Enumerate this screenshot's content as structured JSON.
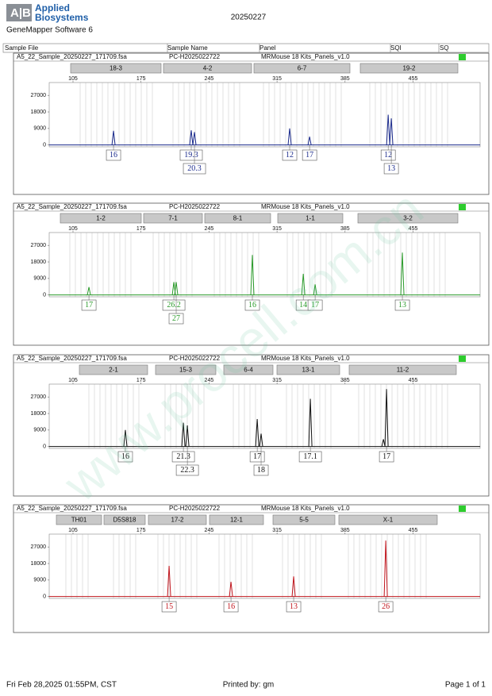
{
  "header": {
    "logo": [
      "Applied",
      "Biosystems"
    ],
    "software": "GeneMapper Software 6",
    "date": "20250227"
  },
  "columns": [
    "Sample File",
    "Sample Name",
    "Panel",
    "SQI",
    "SQ"
  ],
  "axis": {
    "xlim": [
      80.5,
      524
    ],
    "xticks": [
      105,
      175,
      245,
      315,
      385,
      455
    ],
    "ylim": [
      -1000,
      34000
    ],
    "yticks": [
      0,
      9000,
      18000,
      27000
    ]
  },
  "panels": [
    {
      "sample_file": "A5_22_Sample_20250227_171709.fsa",
      "sample_name": "PC-H2025022722",
      "panel": "MRMouse 18 Kits_Panels_v1.0",
      "color": "#1a2a8c",
      "markers": [
        "18-3",
        "4-2",
        "6-7",
        "19-2"
      ],
      "peaks": [
        {
          "x": 146.7,
          "height": 7700,
          "allele": "16"
        },
        {
          "x": 226.7,
          "height": 8000,
          "allele": "19.3"
        },
        {
          "x": 230,
          "height": 7000,
          "allele": "20.3"
        },
        {
          "x": 328,
          "height": 9000,
          "allele": "12"
        },
        {
          "x": 348.5,
          "height": 4500,
          "allele": "17"
        },
        {
          "x": 429.4,
          "height": 16500,
          "allele": "12"
        },
        {
          "x": 432.6,
          "height": 14500,
          "allele": "13"
        }
      ]
    },
    {
      "sample_file": "A5_22_Sample_20250227_171709.fsa",
      "sample_name": "PC-H2025022722",
      "panel": "MRMouse 18 Kits_Panels_v1.0",
      "color": "#2a9a2a",
      "markers": [
        "1-2",
        "7-1",
        "8-1",
        "1-1",
        "3-2"
      ],
      "peaks": [
        {
          "x": 121.4,
          "height": 4300,
          "allele": "17"
        },
        {
          "x": 208.8,
          "height": 7000,
          "allele": "26.2"
        },
        {
          "x": 211.2,
          "height": 7000,
          "allele": "27"
        },
        {
          "x": 289.6,
          "height": 21800,
          "allele": "16"
        },
        {
          "x": 342,
          "height": 11500,
          "allele": "14"
        },
        {
          "x": 354.2,
          "height": 5800,
          "allele": "17"
        },
        {
          "x": 444,
          "height": 23100,
          "allele": "13"
        }
      ]
    },
    {
      "sample_file": "A5_22_Sample_20250227_171709.fsa",
      "sample_name": "PC-H2025022722",
      "panel": "MRMouse 18 Kits_Panels_v1.0",
      "color": "#111111",
      "markers": [
        "2-1",
        "15-3",
        "6-4",
        "13-1",
        "11-2"
      ],
      "peaks": [
        {
          "x": 158.9,
          "height": 9000,
          "allele": "16"
        },
        {
          "x": 218.6,
          "height": 13000,
          "allele": "21.3"
        },
        {
          "x": 222.7,
          "height": 11500,
          "allele": "22.3"
        },
        {
          "x": 294.6,
          "height": 15000,
          "allele": "17"
        },
        {
          "x": 298.6,
          "height": 7000,
          "allele": "18"
        },
        {
          "x": 349.3,
          "height": 26000,
          "allele": "17.1"
        },
        {
          "x": 424.5,
          "height": 4000
        },
        {
          "x": 427.7,
          "height": 31300,
          "allele": "17"
        }
      ]
    },
    {
      "sample_file": "A5_22_Sample_20250227_171709.fsa",
      "sample_name": "PC-H2025022722",
      "panel": "MRMouse 18 Kits_Panels_v1.0",
      "color": "#c0141c",
      "markers": [
        "TH01",
        "D5S818",
        "17-2",
        "12-1",
        "5-5",
        "X-1"
      ],
      "peaks": [
        {
          "x": 203.9,
          "height": 16700,
          "allele": "15"
        },
        {
          "x": 267.6,
          "height": 8000,
          "allele": "16"
        },
        {
          "x": 332.1,
          "height": 11000,
          "allele": "13"
        },
        {
          "x": 426.9,
          "height": 30500,
          "allele": "26"
        }
      ]
    }
  ],
  "watermark": "www.procell.com.cn",
  "footer": {
    "printed_at": "Fri Feb 28,2025 01:55PM, CST",
    "printed_by": "Printed by: gm",
    "page": "Page 1 of 1"
  }
}
